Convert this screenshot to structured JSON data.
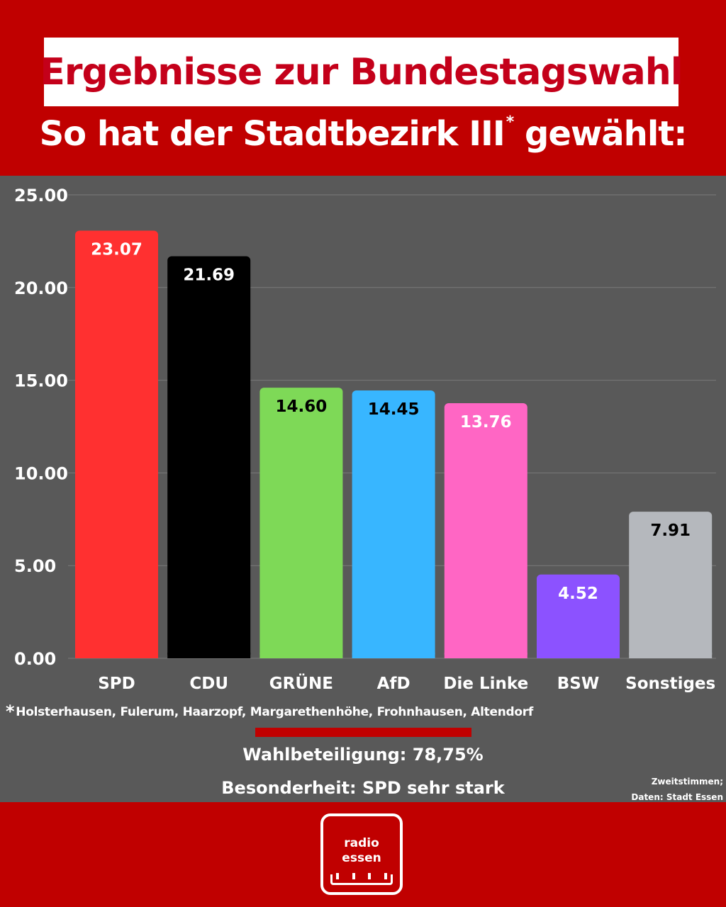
{
  "header": {
    "title": "Ergebnisse zur Bundestagswahl",
    "subtitle_main": "So hat der Stadtbezirk III",
    "subtitle_mark": "*",
    "subtitle_end": " gewählt:"
  },
  "footnote": {
    "mark": "*",
    "text": "Holsterhausen, Fulerum, Haarzopf, Margarethenhöhe, Frohnhausen, Altendorf"
  },
  "turnout": "Wahlbeteiligung: 78,75%",
  "special": "Besonderheit: SPD sehr stark",
  "source": {
    "line1": "Zweitstimmen;",
    "line2": "Daten: Stadt Essen"
  },
  "logo": {
    "line1": "radio",
    "line2": "essen"
  },
  "colors": {
    "background_red": "#c00000",
    "panel": "#595959",
    "title_red": "#c4001a"
  },
  "chart_data": {
    "type": "bar",
    "title": "",
    "xlabel": "",
    "ylabel": "",
    "ylim": [
      0,
      25
    ],
    "y_ticks": [
      0,
      5,
      10,
      15,
      20,
      25
    ],
    "y_tick_labels": [
      "0.00",
      "5.00",
      "10.00",
      "15.00",
      "20.00",
      "25.00"
    ],
    "grid": true,
    "categories": [
      "SPD",
      "CDU",
      "GRÜNE",
      "AfD",
      "Die Linke",
      "BSW",
      "Sonstiges"
    ],
    "values": [
      23.07,
      21.69,
      14.6,
      14.45,
      13.76,
      4.52,
      7.91
    ],
    "value_labels": [
      "23.07",
      "21.69",
      "14.60",
      "14.45",
      "13.76",
      "4.52",
      "7.91"
    ],
    "bar_colors": [
      "#ff3030",
      "#000000",
      "#7ed957",
      "#38b6ff",
      "#ff66c4",
      "#8c52ff",
      "#b5b8bd"
    ],
    "label_colors": [
      "#ffffff",
      "#ffffff",
      "#000000",
      "#000000",
      "#ffffff",
      "#ffffff",
      "#000000"
    ]
  }
}
